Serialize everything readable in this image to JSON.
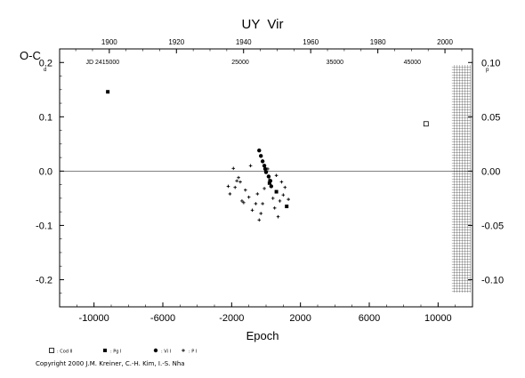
{
  "chart_data": {
    "type": "scatter",
    "title": "UY  Vir",
    "ylabel": "O-C",
    "xlabel": "Epoch",
    "y_unit_left": "d",
    "y_unit_right": "p",
    "x_range": [
      -12000,
      12000
    ],
    "y_range": [
      -0.25,
      0.225
    ],
    "y_right_range": [
      -0.125,
      0.1125
    ],
    "x_ticks": [
      "-10000",
      "-6000",
      "-2000",
      "2000",
      "6000",
      "10000"
    ],
    "y_ticks_left": [
      "0.2",
      "0.1",
      "0.0",
      "-0.1",
      "-0.2"
    ],
    "y_ticks_right": [
      "0.10",
      "0.05",
      "0.00",
      "-0.05",
      "-0.10"
    ],
    "top_year_ticks": [
      "1900",
      "1920",
      "1940",
      "1960",
      "1980",
      "2000"
    ],
    "top_jd_ticks": [
      "JD 2415000",
      "25000",
      "35000",
      "45000"
    ],
    "zero_line": true,
    "hatched_region": [
      10800,
      12000
    ],
    "series": [
      {
        "name": ": Cod II",
        "symbol": "open-square",
        "points": [
          [
            9300,
            0.087
          ]
        ]
      },
      {
        "name": ": Pg I",
        "symbol": "filled-square",
        "points": [
          [
            -9200,
            0.146
          ],
          [
            200,
            -0.022
          ],
          [
            600,
            -0.038
          ],
          [
            1200,
            -0.065
          ]
        ]
      },
      {
        "name": ": Vi I",
        "symbol": "filled-circle",
        "points": [
          [
            -400,
            0.038
          ],
          [
            -300,
            0.028
          ],
          [
            -200,
            0.018
          ],
          [
            -100,
            0.01
          ],
          [
            -50,
            0.004
          ],
          [
            0,
            -0.002
          ],
          [
            150,
            -0.01
          ],
          [
            250,
            -0.018
          ],
          [
            300,
            -0.028
          ]
        ]
      },
      {
        "name": ": P I",
        "symbol": "plus",
        "points": [
          [
            -2200,
            -0.028
          ],
          [
            -1900,
            0.005
          ],
          [
            -1600,
            -0.012
          ],
          [
            -1800,
            -0.03
          ],
          [
            -1500,
            -0.02
          ],
          [
            -1200,
            -0.035
          ],
          [
            -1400,
            -0.055
          ],
          [
            -1000,
            -0.048
          ],
          [
            -800,
            -0.072
          ],
          [
            -600,
            -0.06
          ],
          [
            -500,
            -0.042
          ],
          [
            -300,
            -0.078
          ],
          [
            -200,
            -0.06
          ],
          [
            -100,
            -0.032
          ],
          [
            100,
            0.004
          ],
          [
            200,
            -0.016
          ],
          [
            400,
            -0.05
          ],
          [
            500,
            -0.068
          ],
          [
            600,
            -0.008
          ],
          [
            700,
            -0.084
          ],
          [
            800,
            -0.055
          ],
          [
            900,
            -0.02
          ],
          [
            1000,
            -0.044
          ],
          [
            1100,
            -0.03
          ],
          [
            -2100,
            -0.042
          ],
          [
            -1700,
            -0.018
          ],
          [
            -1300,
            -0.058
          ],
          [
            -900,
            0.01
          ],
          [
            1300,
            -0.052
          ],
          [
            -400,
            -0.09
          ]
        ]
      }
    ]
  },
  "copyright": "Copyright 2000 J.M. Kreiner, C.-H. Kim, I.-S. Nha"
}
